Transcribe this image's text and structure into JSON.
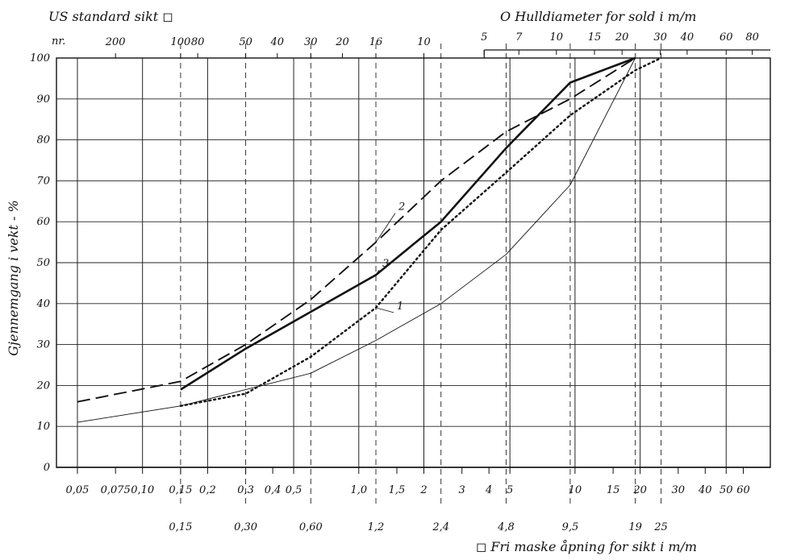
{
  "chart_data": {
    "type": "line",
    "x_scale": "log",
    "x_range_mm": [
      0.04,
      80
    ],
    "y_range": [
      0,
      100
    ],
    "grid": true,
    "title_top_left": "US standard sikt ◻",
    "top_left_nr_label": "nr.",
    "title_top_right": "O Hulldiameter for sold i m/m",
    "ylabel": "Gjennemgang i vekt - %",
    "xlabel_bottom": "◻ Fri maske åpning for sikt i m/m",
    "y_ticks": [
      "0",
      "10",
      "20",
      "30",
      "40",
      "50",
      "60",
      "70",
      "80",
      "90",
      "100"
    ],
    "us_sieve_ticks": [
      {
        "label": "200",
        "mm": 0.075
      },
      {
        "label": "100",
        "mm": 0.15
      },
      {
        "label": "80",
        "mm": 0.18
      },
      {
        "label": "50",
        "mm": 0.3
      },
      {
        "label": "40",
        "mm": 0.42
      },
      {
        "label": "30",
        "mm": 0.6
      },
      {
        "label": "20",
        "mm": 0.84
      },
      {
        "label": "16",
        "mm": 1.2
      },
      {
        "label": "10",
        "mm": 2.0
      }
    ],
    "hole_diameter_ticks": [
      {
        "label": "5",
        "mm": 3.8
      },
      {
        "label": "7",
        "mm": 5.5
      },
      {
        "label": "10",
        "mm": 8.2
      },
      {
        "label": "15",
        "mm": 12.3
      },
      {
        "label": "20",
        "mm": 16.5
      },
      {
        "label": "30",
        "mm": 24.8
      },
      {
        "label": "40",
        "mm": 33
      },
      {
        "label": "60",
        "mm": 50
      },
      {
        "label": "80",
        "mm": 66
      }
    ],
    "mm_ticks": [
      {
        "label": "0,05",
        "mm": 0.05
      },
      {
        "label": "0,075",
        "mm": 0.075
      },
      {
        "label": "0,10",
        "mm": 0.1
      },
      {
        "label": "0,15",
        "mm": 0.15
      },
      {
        "label": "0,2",
        "mm": 0.2
      },
      {
        "label": "0,3",
        "mm": 0.3
      },
      {
        "label": "0,4",
        "mm": 0.4
      },
      {
        "label": "0,5",
        "mm": 0.5
      },
      {
        "label": "1,0",
        "mm": 1.0
      },
      {
        "label": "1,5",
        "mm": 1.5
      },
      {
        "label": "2",
        "mm": 2
      },
      {
        "label": "3",
        "mm": 3
      },
      {
        "label": "4",
        "mm": 4
      },
      {
        "label": "5",
        "mm": 5
      },
      {
        "label": "10",
        "mm": 10
      },
      {
        "label": "15",
        "mm": 15
      },
      {
        "label": "20",
        "mm": 20
      },
      {
        "label": "30",
        "mm": 30
      },
      {
        "label": "40",
        "mm": 40
      },
      {
        "label": "50",
        "mm": 50
      },
      {
        "label": "60",
        "mm": 60
      }
    ],
    "sieve_opening_ticks": [
      {
        "label": "0,15",
        "mm": 0.15
      },
      {
        "label": "0,30",
        "mm": 0.3
      },
      {
        "label": "0,60",
        "mm": 0.6
      },
      {
        "label": "1,2",
        "mm": 1.2
      },
      {
        "label": "2,4",
        "mm": 2.4
      },
      {
        "label": "4,8",
        "mm": 4.8
      },
      {
        "label": "9,5",
        "mm": 9.5
      },
      {
        "label": "19",
        "mm": 19
      },
      {
        "label": "25",
        "mm": 25
      }
    ],
    "series": [
      {
        "name": "1",
        "style": "dotted",
        "x": [
          0.15,
          0.3,
          0.6,
          1.2,
          2.4,
          4.8,
          9.5,
          19,
          25
        ],
        "y": [
          15,
          18,
          27,
          39,
          58,
          72,
          86,
          97,
          100
        ]
      },
      {
        "name": "2",
        "style": "long-dash",
        "x": [
          0.05,
          0.15,
          0.3,
          0.6,
          1.2,
          2.4,
          4.8,
          9.5,
          19
        ],
        "y": [
          16,
          21,
          30,
          41,
          55,
          70,
          82,
          90,
          100
        ]
      },
      {
        "name": "3",
        "style": "thick",
        "x": [
          0.15,
          0.3,
          0.6,
          1.2,
          2.4,
          4.8,
          9.5,
          19
        ],
        "y": [
          19,
          29,
          38,
          47,
          60,
          78,
          94,
          100
        ]
      },
      {
        "name": "",
        "style": "thin",
        "x": [
          0.05,
          0.15,
          0.6,
          1.2,
          2.4,
          4.8,
          9.5,
          19
        ],
        "y": [
          11,
          15,
          23,
          31,
          40,
          52,
          69,
          100
        ]
      }
    ]
  }
}
